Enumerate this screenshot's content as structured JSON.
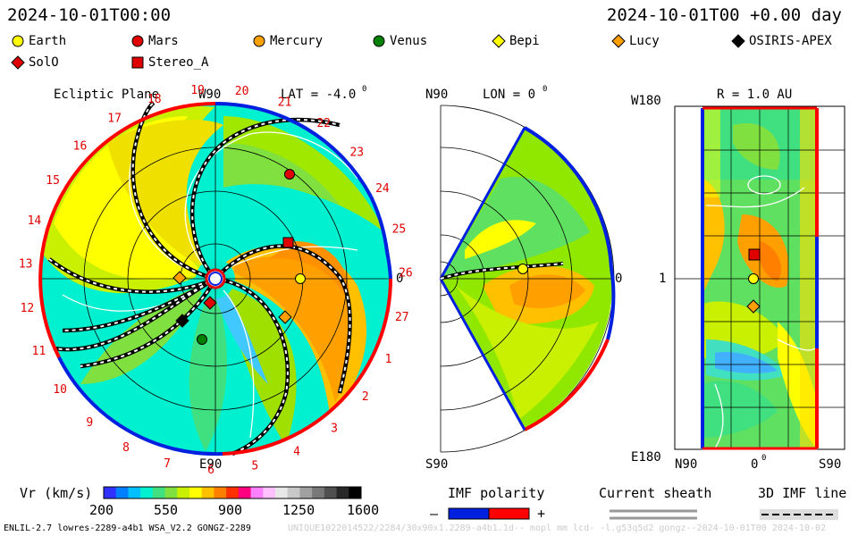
{
  "header": {
    "timestamp": "2024-10-01T00:00",
    "offset": "2024-10-01T00 +0.00 day"
  },
  "legend": [
    {
      "label": "Earth",
      "shape": "circle",
      "color": "#ffff00"
    },
    {
      "label": "Mars",
      "shape": "circle",
      "color": "#e00000"
    },
    {
      "label": "Mercury",
      "shape": "circle",
      "color": "#ffa000"
    },
    {
      "label": "Venus",
      "shape": "circle",
      "color": "#008000"
    },
    {
      "label": "Bepi",
      "shape": "diamond",
      "color": "#ffff00"
    },
    {
      "label": "Lucy",
      "shape": "diamond",
      "color": "#ffa000"
    },
    {
      "label": "OSIRIS-APEX",
      "shape": "diamond",
      "color": "#000000"
    },
    {
      "label": "SolO",
      "shape": "diamond",
      "color": "#e00000"
    },
    {
      "label": "Stereo_A",
      "shape": "square",
      "color": "#e00000"
    }
  ],
  "panels": {
    "ecliptic": {
      "title": "Ecliptic Plane",
      "top_label": "W90",
      "bottom_label": "E90",
      "right_label": "0",
      "lat_label": "LAT = -4.0",
      "lat_sup": "0",
      "carrington_ticks": [
        "20",
        "21",
        "22",
        "23",
        "24",
        "25",
        "26",
        "27",
        "1",
        "2",
        "3",
        "4",
        "5",
        "6",
        "7",
        "8",
        "9",
        "10",
        "11",
        "12",
        "13",
        "14",
        "15",
        "16",
        "17",
        "18",
        "19"
      ]
    },
    "meridional": {
      "top_label": "N90",
      "bottom_label": "S90",
      "lon_label": "LON = 0",
      "lon_sup": "0",
      "right_label": "0"
    },
    "radial": {
      "title": "R = 1.0 AU",
      "top_left": "W180",
      "bottom_left": "E180",
      "mid_left": "1",
      "bottom_ticks": [
        "N90",
        "0",
        "S90"
      ],
      "zero_sup": "0"
    }
  },
  "colorbar": {
    "label": "Vr (km/s)",
    "ticks": [
      "200",
      "550",
      "900",
      "1250",
      "1600"
    ],
    "min": 200,
    "max": 1600
  },
  "imf": {
    "title": "IMF polarity",
    "minus": "–",
    "plus": "+",
    "minus_color": "#0020e0",
    "plus_color": "#ff0000"
  },
  "sheath": {
    "title": "Current sheath"
  },
  "imfline": {
    "title": "3D IMF line"
  },
  "footer": {
    "model": "ENLIL-2.7 lowres-2289-a4b1 WSA_V2.2 GONGZ-2289",
    "run": "UNIQUE1022014522/2284/30x90x1.2289-a4b1.1d-- mopl mm lcd- -l.g53q5d2 gongz--2024-10-01T00         2024-10-02"
  },
  "chart_data": {
    "type": "heatmap",
    "quantity": "Vr (km/s)",
    "range": [
      200,
      1600
    ],
    "bodies": {
      "Earth": {
        "shown": true
      },
      "Mars": {
        "shown": true
      },
      "Mercury": {
        "shown": true
      },
      "Venus": {
        "shown": true
      },
      "Bepi": {
        "shown": true
      },
      "Lucy": {
        "shown": true
      },
      "OSIRIS-APEX": {
        "shown": true
      },
      "SolO": {
        "shown": true
      },
      "Stereo_A": {
        "shown": true
      }
    }
  }
}
